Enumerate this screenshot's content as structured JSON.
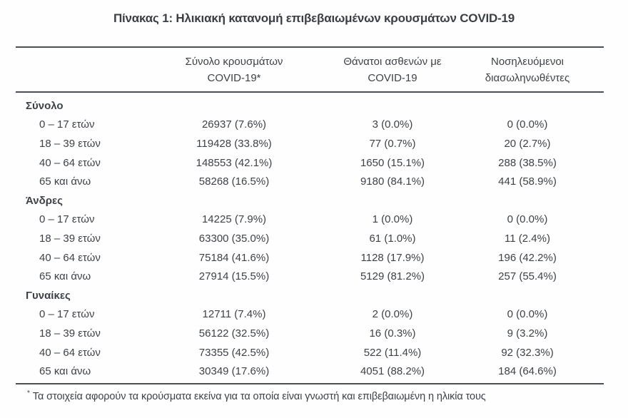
{
  "title": "Πίνακας 1: Ηλικιακή κατανομή επιβεβαιωμένων κρουσμάτων COVID-19",
  "table": {
    "columns": [
      {
        "line1": "Σύνολο κρουσμάτων",
        "line2": "COVID-19*"
      },
      {
        "line1": "Θάνατοι ασθενών με",
        "line2": "COVID-19"
      },
      {
        "line1": "Νοσηλευόμενοι",
        "line2": "διασωληνωθέντες"
      }
    ],
    "sections": [
      {
        "label": "Σύνολο",
        "rows": [
          {
            "label": "0 – 17 ετών",
            "cases": "26937 (7.6%)",
            "deaths": "3 (0.0%)",
            "intubated": "0 (0.0%)"
          },
          {
            "label": "18 – 39 ετών",
            "cases": "119428 (33.8%)",
            "deaths": "77 (0.7%)",
            "intubated": "20 (2.7%)"
          },
          {
            "label": "40 – 64 ετών",
            "cases": "148553 (42.1%)",
            "deaths": "1650 (15.1%)",
            "intubated": "288 (38.5%)"
          },
          {
            "label": "65 και άνω",
            "cases": "58268 (16.5%)",
            "deaths": "9180 (84.1%)",
            "intubated": "441 (58.9%)"
          }
        ]
      },
      {
        "label": "Άνδρες",
        "rows": [
          {
            "label": "0 – 17 ετών",
            "cases": "14225 (7.9%)",
            "deaths": "1 (0.0%)",
            "intubated": "0 (0.0%)"
          },
          {
            "label": "18 – 39 ετών",
            "cases": "63300 (35.0%)",
            "deaths": "61 (1.0%)",
            "intubated": "11 (2.4%)"
          },
          {
            "label": "40 – 64 ετών",
            "cases": "75184 (41.6%)",
            "deaths": "1128 (17.9%)",
            "intubated": "196 (42.2%)"
          },
          {
            "label": "65 και άνω",
            "cases": "27914 (15.5%)",
            "deaths": "5129 (81.2%)",
            "intubated": "257 (55.4%)"
          }
        ]
      },
      {
        "label": "Γυναίκες",
        "rows": [
          {
            "label": "0 – 17 ετών",
            "cases": "12711 (7.4%)",
            "deaths": "2 (0.0%)",
            "intubated": "0 (0.0%)"
          },
          {
            "label": "18 – 39 ετών",
            "cases": "56122 (32.5%)",
            "deaths": "16 (0.3%)",
            "intubated": "9 (3.2%)"
          },
          {
            "label": "40 – 64 ετών",
            "cases": "73355 (42.5%)",
            "deaths": "522 (11.4%)",
            "intubated": "92 (32.3%)"
          },
          {
            "label": "65 και άνω",
            "cases": "30349 (17.6%)",
            "deaths": "4051 (88.2%)",
            "intubated": "184 (64.6%)"
          }
        ]
      }
    ]
  },
  "footnote": {
    "marker": "*",
    "text": "Τα στοιχεία αφορούν τα κρούσματα εκείνα για τα οποία είναι γνωστή και επιβεβαιωμένη η ηλικία τους"
  },
  "colors": {
    "text": "#3e4247",
    "rule": "#4b4f54",
    "background": "#fefefe"
  }
}
